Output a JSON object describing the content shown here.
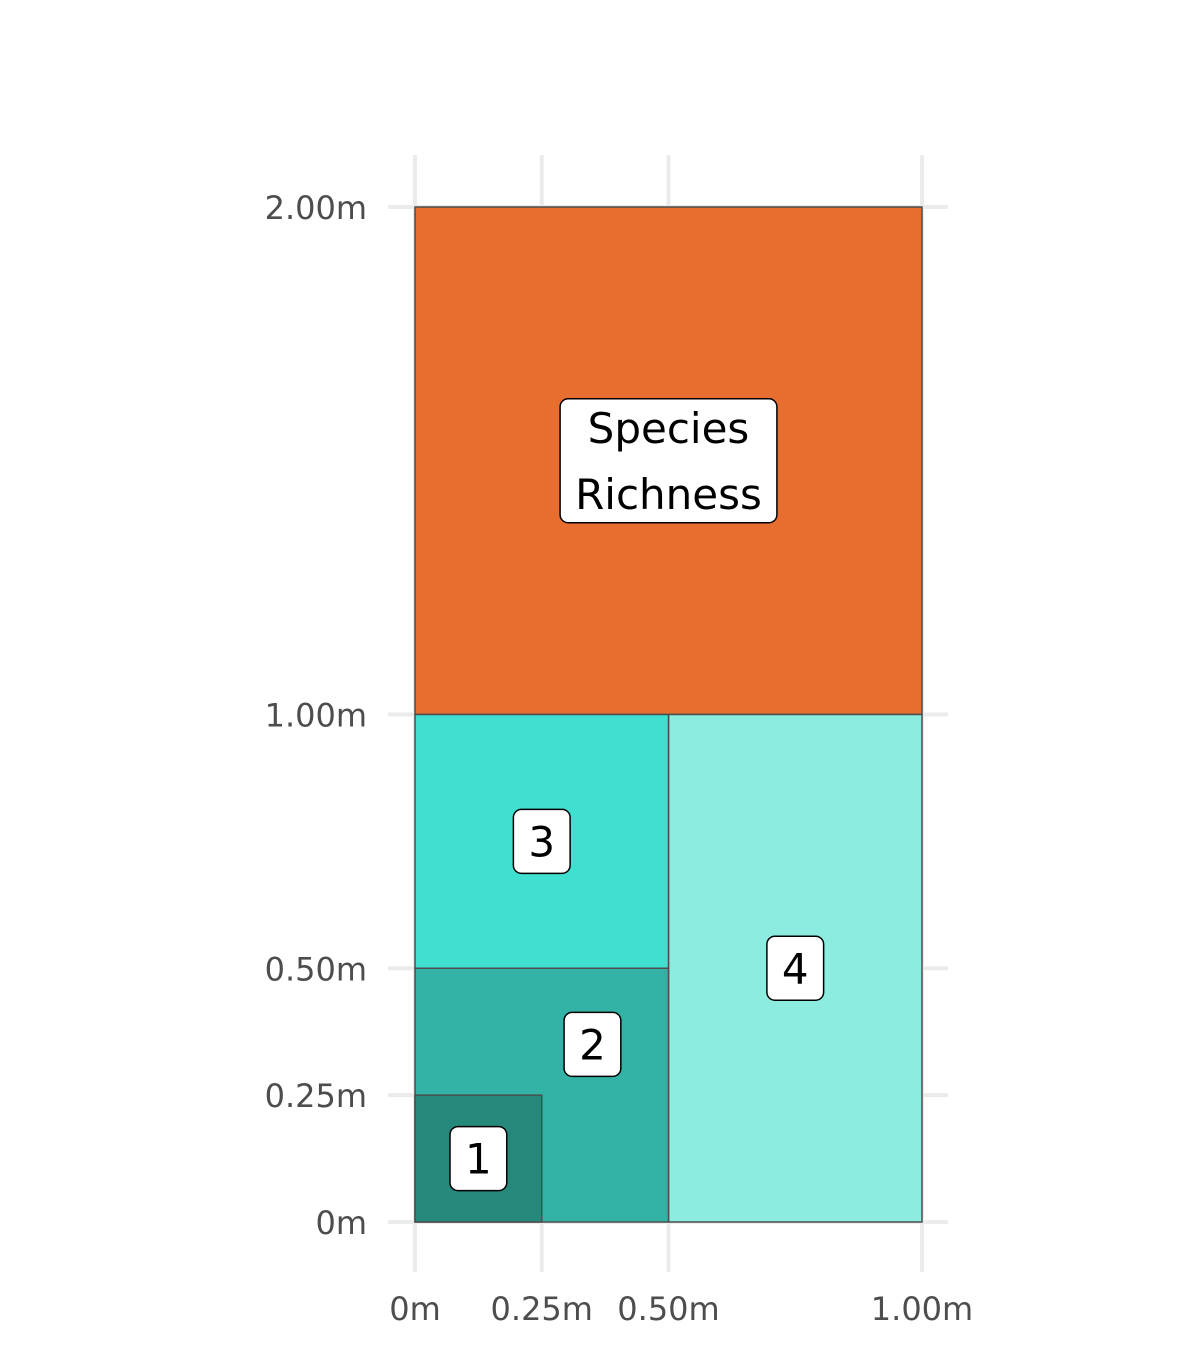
{
  "chart_data": {
    "type": "rect",
    "title": "",
    "xlabel": "",
    "ylabel": "",
    "xlim": [
      0,
      1
    ],
    "ylim": [
      0,
      2
    ],
    "x_ticks": [
      {
        "value": 0,
        "label": "0m"
      },
      {
        "value": 0.25,
        "label": "0.25m"
      },
      {
        "value": 0.5,
        "label": "0.50m"
      },
      {
        "value": 1,
        "label": "1.00m"
      }
    ],
    "y_ticks": [
      {
        "value": 0,
        "label": "0m"
      },
      {
        "value": 0.25,
        "label": "0.25m"
      },
      {
        "value": 0.5,
        "label": "0.50m"
      },
      {
        "value": 1,
        "label": "1.00m"
      },
      {
        "value": 2,
        "label": "2.00m"
      }
    ],
    "grid": true,
    "legend": "none",
    "rects": [
      {
        "xmin": 0,
        "xmax": 1,
        "ymin": 1,
        "ymax": 2,
        "color": "#e76e2f",
        "label_lines": [
          "Species",
          "Richness"
        ],
        "label_x": 0.5,
        "label_y": 1.5
      },
      {
        "xmin": 0.5,
        "xmax": 1,
        "ymin": 0,
        "ymax": 1,
        "color": "#8cece0",
        "label_lines": [
          "4"
        ],
        "label_x": 0.75,
        "label_y": 0.5
      },
      {
        "xmin": 0,
        "xmax": 0.5,
        "ymin": 0.5,
        "ymax": 1,
        "color": "#40e0d0",
        "label_lines": [
          "3"
        ],
        "label_x": 0.25,
        "label_y": 0.75
      },
      {
        "xmin": 0,
        "xmax": 0.5,
        "ymin": 0,
        "ymax": 0.5,
        "color": "#33b3a6",
        "label_lines": [
          "2"
        ],
        "label_x": 0.35,
        "label_y": 0.35
      },
      {
        "xmin": 0,
        "xmax": 0.25,
        "ymin": 0,
        "ymax": 0.25,
        "color": "#26877b",
        "label_lines": [
          "1"
        ],
        "label_x": 0.125,
        "label_y": 0.125
      }
    ]
  }
}
